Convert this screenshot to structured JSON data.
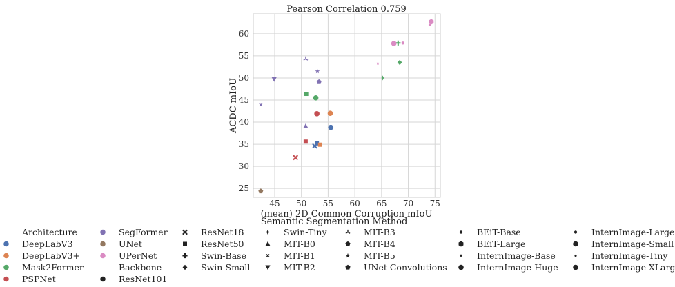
{
  "chart_data": {
    "type": "scatter",
    "title": "Pearson Correlation 0.759",
    "xlabel": "(mean) 2D Common Corruption mIoU",
    "ylabel": "ACDC mIoU",
    "xlim": [
      41.0,
      76.0
    ],
    "ylim": [
      23.0,
      64.5
    ],
    "xticks": [
      45,
      50,
      55,
      60,
      65,
      70,
      75
    ],
    "yticks": [
      25,
      30,
      35,
      40,
      45,
      50,
      55,
      60
    ],
    "grid": true,
    "legend_title": "Semantic Segmentation Method",
    "legend_placement": "below",
    "colors": {
      "DeepLabV3": "#4c72b0",
      "DeepLabV3+": "#dd8452",
      "Mask2Former": "#55a868",
      "PSPNet": "#c44e52",
      "SegFormer": "#8172b3",
      "UNet": "#937860",
      "UPerNet": "#da8bc3"
    },
    "markers": {
      "ResNet101": "circle",
      "ResNet18": "x",
      "ResNet50": "square",
      "Swin-Base": "plus",
      "Swin-Small": "diamond",
      "Swin-Tiny": "thin-diamond",
      "MIT-B0": "triangle-up",
      "MIT-B1": "x-small",
      "MIT-B2": "triangle-down",
      "MIT-B3": "tri",
      "MIT-B4": "pentagon",
      "MIT-B5": "star",
      "UNet Convolutions": "pentagon",
      "BEiT-Base": "small-circle",
      "BEiT-Large": "hexagon",
      "InternImage-Base": "star-small",
      "InternImage-Huge": "circle",
      "InternImage-Large": "small-circle",
      "InternImage-Small": "circle",
      "InternImage-Tiny": "dot",
      "InternImage-XLarge": "circle"
    },
    "points": [
      {
        "architecture": "DeepLabV3",
        "backbone": "ResNet101",
        "x": 55.5,
        "y": 38.8
      },
      {
        "architecture": "DeepLabV3",
        "backbone": "ResNet50",
        "x": 52.9,
        "y": 35.2
      },
      {
        "architecture": "DeepLabV3",
        "backbone": "ResNet18",
        "x": 52.5,
        "y": 34.6
      },
      {
        "architecture": "DeepLabV3+",
        "backbone": "ResNet101",
        "x": 55.4,
        "y": 42.0
      },
      {
        "architecture": "DeepLabV3+",
        "backbone": "ResNet50",
        "x": 53.5,
        "y": 34.9
      },
      {
        "architecture": "PSPNet",
        "backbone": "ResNet101",
        "x": 52.9,
        "y": 41.9
      },
      {
        "architecture": "PSPNet",
        "backbone": "ResNet50",
        "x": 50.8,
        "y": 35.6
      },
      {
        "architecture": "PSPNet",
        "backbone": "ResNet18",
        "x": 48.9,
        "y": 32.0
      },
      {
        "architecture": "Mask2Former",
        "backbone": "ResNet101",
        "x": 52.7,
        "y": 45.5
      },
      {
        "architecture": "Mask2Former",
        "backbone": "ResNet50",
        "x": 50.9,
        "y": 46.4
      },
      {
        "architecture": "Mask2Former",
        "backbone": "Swin-Small",
        "x": 68.4,
        "y": 53.5
      },
      {
        "architecture": "Mask2Former",
        "backbone": "Swin-Tiny",
        "x": 65.2,
        "y": 50.0
      },
      {
        "architecture": "Mask2Former",
        "backbone": "Swin-Base",
        "x": 68.1,
        "y": 57.9
      },
      {
        "architecture": "SegFormer",
        "backbone": "MIT-B0",
        "x": 50.8,
        "y": 39.1
      },
      {
        "architecture": "SegFormer",
        "backbone": "MIT-B1",
        "x": 42.4,
        "y": 43.9
      },
      {
        "architecture": "SegFormer",
        "backbone": "MIT-B2",
        "x": 44.9,
        "y": 49.7
      },
      {
        "architecture": "SegFormer",
        "backbone": "MIT-B3",
        "x": 50.8,
        "y": 54.3
      },
      {
        "architecture": "SegFormer",
        "backbone": "MIT-B4",
        "x": 53.3,
        "y": 49.1
      },
      {
        "architecture": "SegFormer",
        "backbone": "MIT-B5",
        "x": 53.0,
        "y": 51.5
      },
      {
        "architecture": "UNet",
        "backbone": "UNet Convolutions",
        "x": 42.4,
        "y": 24.4
      },
      {
        "architecture": "UPerNet",
        "backbone": "BEiT-Large",
        "x": 74.3,
        "y": 62.7
      },
      {
        "architecture": "UPerNet",
        "backbone": "InternImage-XLarge",
        "x": 67.3,
        "y": 57.8
      },
      {
        "architecture": "UPerNet",
        "backbone": "InternImage-Base",
        "x": 64.3,
        "y": 53.3
      },
      {
        "architecture": "UPerNet",
        "backbone": "InternImage-Large",
        "x": 69.0,
        "y": 57.9
      },
      {
        "architecture": "UPerNet",
        "backbone": "InternImage-Tiny",
        "x": 74.0,
        "y": 62.0
      }
    ]
  },
  "legend": {
    "columns": [
      [
        {
          "label": "Architecture",
          "header": true
        },
        {
          "label": "DeepLabV3",
          "color": "#4c72b0",
          "shape": "circle"
        },
        {
          "label": "DeepLabV3+",
          "color": "#dd8452",
          "shape": "circle"
        },
        {
          "label": "Mask2Former",
          "color": "#55a868",
          "shape": "circle"
        },
        {
          "label": "PSPNet",
          "color": "#c44e52",
          "shape": "circle"
        }
      ],
      [
        {
          "label": "SegFormer",
          "color": "#8172b3",
          "shape": "circle"
        },
        {
          "label": "UNet",
          "color": "#937860",
          "shape": "circle"
        },
        {
          "label": "UPerNet",
          "color": "#da8bc3",
          "shape": "circle"
        },
        {
          "label": "Backbone",
          "header": true
        },
        {
          "label": "ResNet101",
          "color": "#222222",
          "shape": "circle"
        }
      ],
      [
        {
          "label": "ResNet18",
          "color": "#222222",
          "shape": "x"
        },
        {
          "label": "ResNet50",
          "color": "#222222",
          "shape": "square"
        },
        {
          "label": "Swin-Base",
          "color": "#222222",
          "shape": "plus"
        },
        {
          "label": "Swin-Small",
          "color": "#222222",
          "shape": "diamond"
        }
      ],
      [
        {
          "label": "Swin-Tiny",
          "color": "#222222",
          "shape": "thin-diamond"
        },
        {
          "label": "MIT-B0",
          "color": "#222222",
          "shape": "triangle-up"
        },
        {
          "label": "MIT-B1",
          "color": "#222222",
          "shape": "x-small"
        },
        {
          "label": "MIT-B2",
          "color": "#222222",
          "shape": "triangle-down"
        }
      ],
      [
        {
          "label": "MIT-B3",
          "color": "#222222",
          "shape": "tri"
        },
        {
          "label": "MIT-B4",
          "color": "#222222",
          "shape": "pentagon"
        },
        {
          "label": "MIT-B5",
          "color": "#222222",
          "shape": "star"
        },
        {
          "label": "UNet Convolutions",
          "color": "#222222",
          "shape": "pentagon"
        }
      ],
      [
        {
          "label": "BEiT-Base",
          "color": "#222222",
          "shape": "small-circle"
        },
        {
          "label": "BEiT-Large",
          "color": "#222222",
          "shape": "hexagon"
        },
        {
          "label": "InternImage-Base",
          "color": "#222222",
          "shape": "star-small"
        },
        {
          "label": "InternImage-Huge",
          "color": "#222222",
          "shape": "circle"
        }
      ],
      [
        {
          "label": "InternImage-Large",
          "color": "#222222",
          "shape": "small-circle"
        },
        {
          "label": "InternImage-Small",
          "color": "#222222",
          "shape": "circle"
        },
        {
          "label": "InternImage-Tiny",
          "color": "#222222",
          "shape": "dot"
        },
        {
          "label": "InternImage-XLarge",
          "color": "#222222",
          "shape": "circle"
        }
      ]
    ]
  }
}
